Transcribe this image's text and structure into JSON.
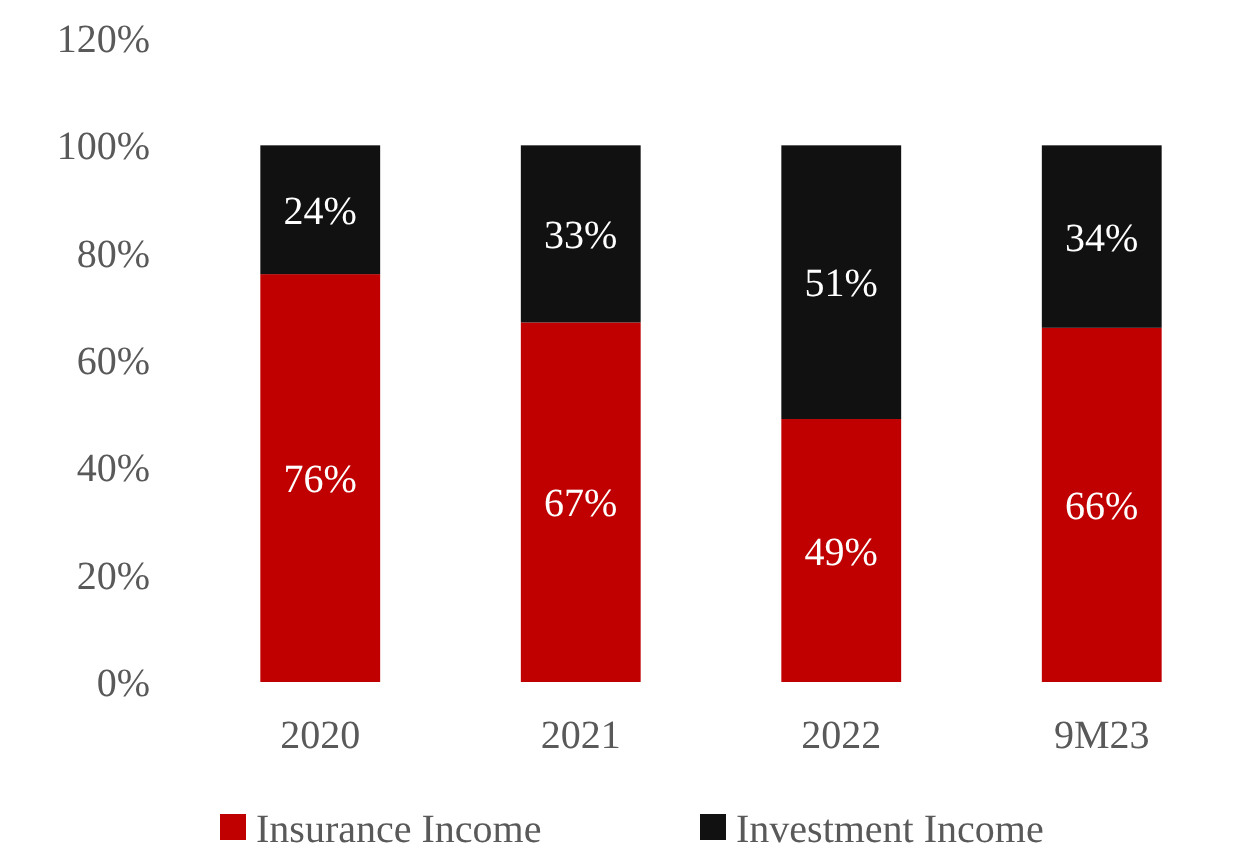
{
  "chart_data": {
    "type": "bar",
    "stacked": true,
    "categories": [
      "2020",
      "2021",
      "2022",
      "9M23"
    ],
    "series": [
      {
        "name": "Insurance Income",
        "color": "#c00000",
        "values": [
          76,
          67,
          49,
          66
        ],
        "value_labels": [
          "76%",
          "67%",
          "49%",
          "66%"
        ]
      },
      {
        "name": "Investment Income",
        "color": "#111111",
        "values": [
          24,
          33,
          51,
          34
        ],
        "value_labels": [
          "24%",
          "33%",
          "51%",
          "34%"
        ]
      }
    ],
    "ylim": [
      0,
      120
    ],
    "yticks": [
      {
        "value": 0,
        "label": "0%"
      },
      {
        "value": 20,
        "label": "20%"
      },
      {
        "value": 40,
        "label": "40%"
      },
      {
        "value": 60,
        "label": "60%"
      },
      {
        "value": 80,
        "label": "80%"
      },
      {
        "value": 100,
        "label": "100%"
      },
      {
        "value": 120,
        "label": "120%"
      }
    ],
    "grid": false,
    "legend": "bottom"
  }
}
